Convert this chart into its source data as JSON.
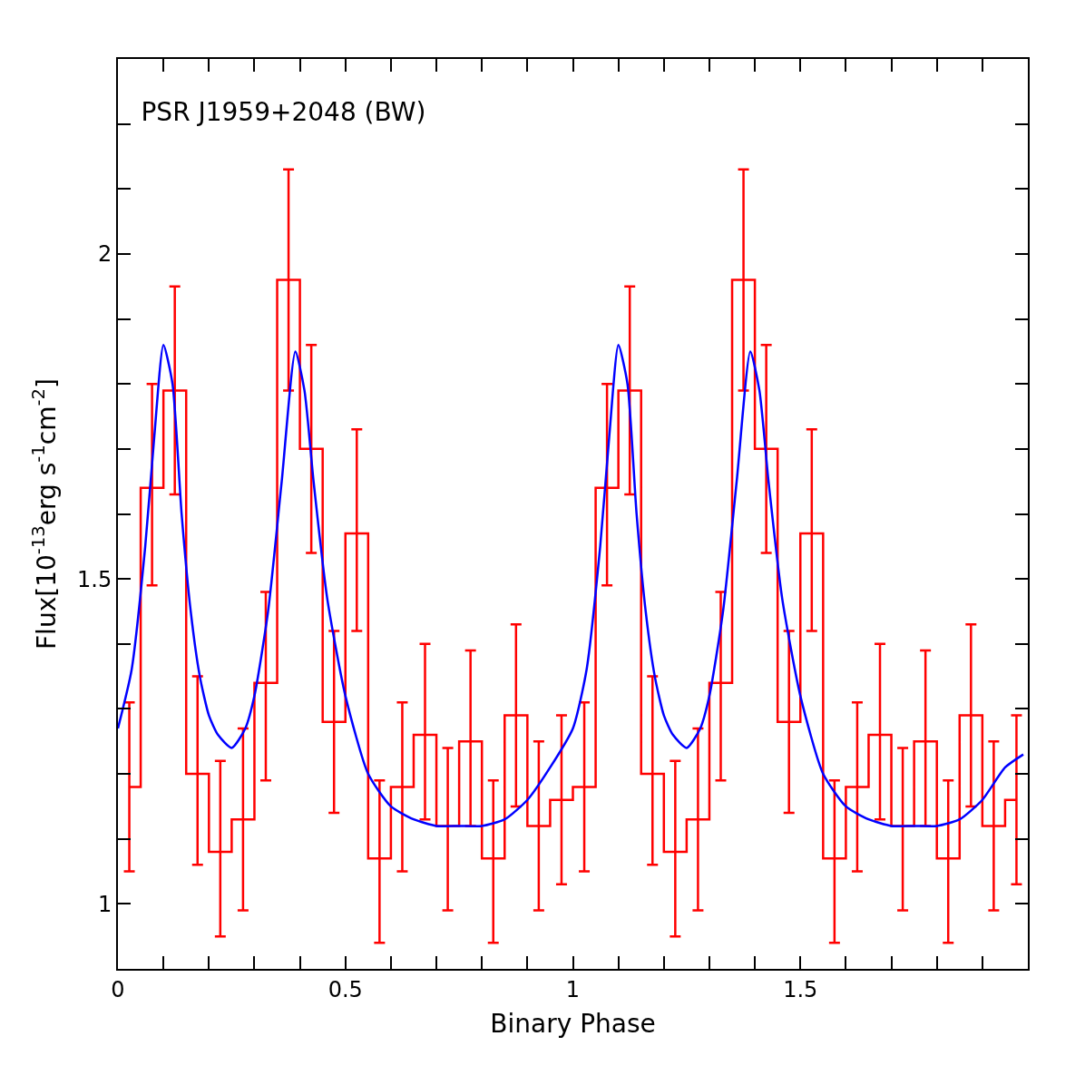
{
  "chart_data": {
    "type": "step",
    "title": "PSR J1959+2048 (BW)",
    "xlabel": "Binary Phase",
    "ylabel": "Flux[10$^{-13}$erg s$^{-1}$cm$^{-2}$]",
    "xlim": [
      0,
      2
    ],
    "ylim": [
      0.9,
      2.3
    ],
    "xticks": [
      0,
      {
        "value": 0.1,
        "label": null
      },
      {
        "value": 0.2,
        "label": null
      },
      {
        "value": 0.3,
        "label": null
      },
      {
        "value": 0.4,
        "label": null
      },
      0.5,
      {
        "value": 0.6,
        "label": null
      },
      {
        "value": 0.7,
        "label": null
      },
      {
        "value": 0.8,
        "label": null
      },
      {
        "value": 0.9,
        "label": null
      },
      1,
      {
        "value": 1.1,
        "label": null
      },
      {
        "value": 1.2,
        "label": null
      },
      {
        "value": 1.3,
        "label": null
      },
      {
        "value": 1.4,
        "label": null
      },
      1.5,
      {
        "value": 1.6,
        "label": null
      },
      {
        "value": 1.7,
        "label": null
      },
      {
        "value": 1.8,
        "label": null
      },
      {
        "value": 1.9,
        "label": null
      }
    ],
    "yticks": [
      {
        "value": 0.9,
        "label": null
      },
      1,
      {
        "value": 1.1,
        "label": null
      },
      {
        "value": 1.2,
        "label": null
      },
      {
        "value": 1.3,
        "label": null
      },
      {
        "value": 1.4,
        "label": null
      },
      1.5,
      {
        "value": 1.6,
        "label": null
      },
      {
        "value": 1.7,
        "label": null
      },
      {
        "value": 1.8,
        "label": null
      },
      {
        "value": 1.9,
        "label": null
      },
      2,
      {
        "value": 2.1,
        "label": null
      },
      {
        "value": 2.2,
        "label": null
      }
    ],
    "series": [
      {
        "type": "step",
        "color": "#ff0000",
        "x": [
          0.025,
          0.075,
          0.125,
          0.175,
          0.225,
          0.275,
          0.325,
          0.375,
          0.425,
          0.475,
          0.525,
          0.575,
          0.625,
          0.675,
          0.725,
          0.775,
          0.825,
          0.875,
          0.925,
          0.975,
          1.025,
          1.075,
          1.125,
          1.175,
          1.225,
          1.275,
          1.325,
          1.375,
          1.425,
          1.475,
          1.525,
          1.575,
          1.625,
          1.675,
          1.725,
          1.775,
          1.825,
          1.875,
          1.925,
          1.975
        ],
        "values": [
          1.18,
          1.64,
          1.79,
          1.2,
          1.08,
          1.13,
          1.34,
          1.96,
          1.7,
          1.28,
          1.57,
          1.07,
          1.18,
          1.26,
          1.12,
          1.25,
          1.07,
          1.29,
          1.12,
          1.16,
          1.18,
          1.64,
          1.79,
          1.2,
          1.08,
          1.13,
          1.34,
          1.96,
          1.7,
          1.28,
          1.57,
          1.07,
          1.18,
          1.26,
          1.12,
          1.25,
          1.07,
          1.29,
          1.12,
          1.16
        ],
        "errors": [
          [
            1.05,
            1.31
          ],
          [
            1.49,
            1.8
          ],
          [
            1.63,
            1.95
          ],
          [
            1.06,
            1.35
          ],
          [
            0.95,
            1.22
          ],
          [
            0.99,
            1.27
          ],
          [
            1.19,
            1.48
          ],
          [
            1.79,
            2.13
          ],
          [
            1.54,
            1.86
          ],
          [
            1.14,
            1.42
          ],
          [
            1.42,
            1.73
          ],
          [
            0.94,
            1.19
          ],
          [
            1.05,
            1.31
          ],
          [
            1.13,
            1.4
          ],
          [
            0.99,
            1.24
          ],
          [
            1.12,
            1.39
          ],
          [
            0.94,
            1.19
          ],
          [
            1.15,
            1.43
          ],
          [
            0.99,
            1.25
          ],
          [
            1.03,
            1.29
          ],
          [
            1.05,
            1.31
          ],
          [
            1.49,
            1.8
          ],
          [
            1.63,
            1.95
          ],
          [
            1.06,
            1.35
          ],
          [
            0.95,
            1.22
          ],
          [
            0.99,
            1.27
          ],
          [
            1.19,
            1.48
          ],
          [
            1.79,
            2.13
          ],
          [
            1.54,
            1.86
          ],
          [
            1.14,
            1.42
          ],
          [
            1.42,
            1.73
          ],
          [
            0.94,
            1.19
          ],
          [
            1.05,
            1.31
          ],
          [
            1.13,
            1.4
          ],
          [
            0.99,
            1.24
          ],
          [
            1.12,
            1.39
          ],
          [
            0.94,
            1.19
          ],
          [
            1.15,
            1.43
          ],
          [
            0.99,
            1.25
          ],
          [
            1.03,
            1.29
          ]
        ]
      },
      {
        "type": "line",
        "color": "#0000ff",
        "x": [
          0,
          0.03,
          0.06,
          0.08,
          0.1,
          0.12,
          0.14,
          0.16,
          0.18,
          0.2,
          0.22,
          0.25,
          0.28,
          0.3,
          0.33,
          0.36,
          0.39,
          0.41,
          0.43,
          0.46,
          0.5,
          0.55,
          0.6,
          0.65,
          0.7,
          0.75,
          0.8,
          0.85,
          0.9,
          0.95,
          1,
          1.03,
          1.06,
          1.08,
          1.1,
          1.12,
          1.14,
          1.16,
          1.18,
          1.2,
          1.22,
          1.25,
          1.28,
          1.3,
          1.33,
          1.36,
          1.39,
          1.41,
          1.43,
          1.46,
          1.5,
          1.55,
          1.6,
          1.65,
          1.7,
          1.75,
          1.8,
          1.85,
          1.9,
          1.95,
          1.99
        ],
        "values": [
          1.27,
          1.36,
          1.55,
          1.72,
          1.86,
          1.8,
          1.6,
          1.45,
          1.35,
          1.29,
          1.26,
          1.24,
          1.27,
          1.32,
          1.45,
          1.65,
          1.85,
          1.79,
          1.65,
          1.47,
          1.32,
          1.2,
          1.15,
          1.13,
          1.12,
          1.12,
          1.12,
          1.13,
          1.16,
          1.21,
          1.27,
          1.36,
          1.55,
          1.72,
          1.86,
          1.8,
          1.6,
          1.45,
          1.35,
          1.29,
          1.26,
          1.24,
          1.27,
          1.32,
          1.45,
          1.65,
          1.85,
          1.79,
          1.65,
          1.47,
          1.32,
          1.2,
          1.15,
          1.13,
          1.12,
          1.12,
          1.12,
          1.13,
          1.16,
          1.21,
          1.23
        ]
      }
    ]
  }
}
